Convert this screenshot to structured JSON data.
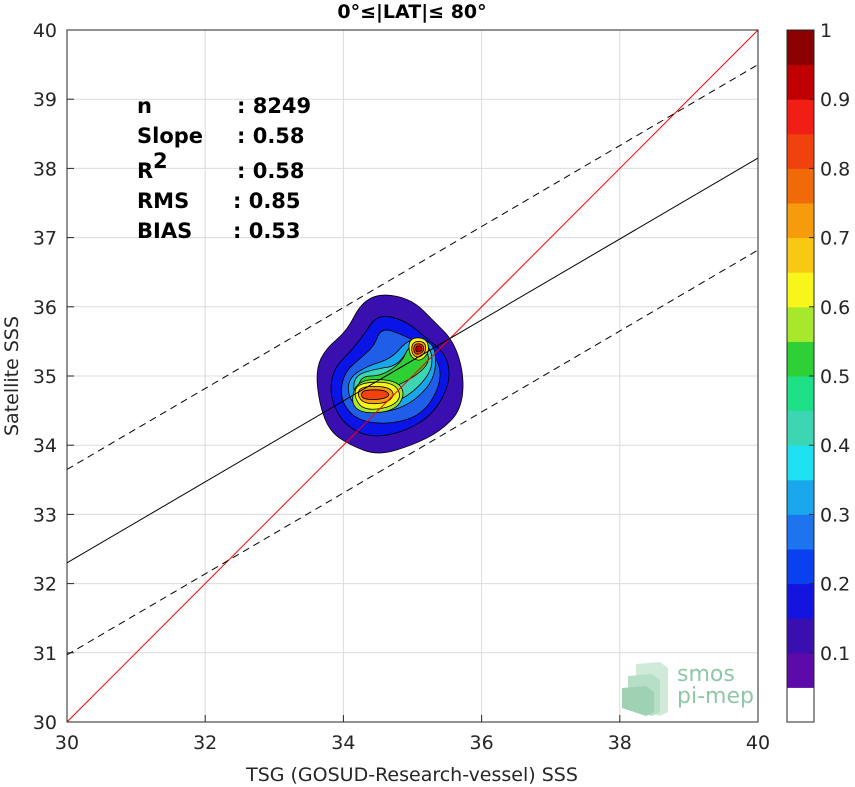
{
  "chart_data": {
    "type": "heatmap",
    "title": "0°≤|LAT|≤ 80°",
    "xlabel": "TSG (GOSUD-Research-vessel) SSS",
    "ylabel": "Satellite SSS",
    "xlim": [
      30,
      40
    ],
    "ylim": [
      30,
      40
    ],
    "xticks": [
      "30",
      "32",
      "34",
      "36",
      "38",
      "40"
    ],
    "yticks": [
      "30",
      "31",
      "32",
      "33",
      "34",
      "35",
      "36",
      "37",
      "38",
      "39",
      "40"
    ],
    "grid": true,
    "stats": [
      {
        "label": "n",
        "value": ": 8249"
      },
      {
        "label": "Slope",
        "value": ": 0.58"
      },
      {
        "label": "R",
        "sup": "2",
        "value": ": 0.58"
      },
      {
        "label": "RMS",
        "value": ": 0.85"
      },
      {
        "label": "BIAS",
        "value": ": 0.53"
      }
    ],
    "lines": [
      {
        "name": "one-to-one",
        "color": "#ff0000",
        "style": "solid",
        "points": [
          [
            30,
            30
          ],
          [
            40,
            40
          ]
        ]
      },
      {
        "name": "regression",
        "color": "#000000",
        "style": "solid",
        "points": [
          [
            30,
            32.3
          ],
          [
            40,
            38.15
          ]
        ]
      },
      {
        "name": "upper-bound",
        "color": "#000000",
        "style": "dashed",
        "points": [
          [
            30,
            33.65
          ],
          [
            40,
            39.5
          ]
        ]
      },
      {
        "name": "lower-bound",
        "color": "#000000",
        "style": "dashed",
        "points": [
          [
            30,
            30.97
          ],
          [
            40,
            36.82
          ]
        ]
      }
    ],
    "density_levels": [
      {
        "level": 0.05,
        "color": "#3a0fb0",
        "outline": [
          [
            34.55,
            36.2
          ],
          [
            35.0,
            36.1
          ],
          [
            35.3,
            35.8
          ],
          [
            35.6,
            35.5
          ],
          [
            35.75,
            35.0
          ],
          [
            35.7,
            34.5
          ],
          [
            35.4,
            34.2
          ],
          [
            35.0,
            34.0
          ],
          [
            34.5,
            33.85
          ],
          [
            34.1,
            34.0
          ],
          [
            33.8,
            34.2
          ],
          [
            33.65,
            34.6
          ],
          [
            33.6,
            35.1
          ],
          [
            33.75,
            35.4
          ],
          [
            34.05,
            35.65
          ],
          [
            34.25,
            36.05
          ]
        ]
      },
      {
        "level": 0.15,
        "color": "#0a14e6",
        "outline": [
          [
            34.5,
            35.9
          ],
          [
            34.9,
            35.8
          ],
          [
            35.2,
            35.55
          ],
          [
            35.5,
            35.3
          ],
          [
            35.55,
            34.9
          ],
          [
            35.3,
            34.45
          ],
          [
            34.9,
            34.2
          ],
          [
            34.4,
            34.1
          ],
          [
            34.0,
            34.3
          ],
          [
            33.8,
            34.7
          ],
          [
            33.85,
            35.1
          ],
          [
            34.1,
            35.35
          ],
          [
            34.3,
            35.6
          ]
        ]
      },
      {
        "level": 0.25,
        "color": "#1e5ee8",
        "outline": [
          [
            34.55,
            35.7
          ],
          [
            34.85,
            35.6
          ],
          [
            35.15,
            35.45
          ],
          [
            35.4,
            35.2
          ],
          [
            35.4,
            34.85
          ],
          [
            35.15,
            34.45
          ],
          [
            34.7,
            34.3
          ],
          [
            34.2,
            34.35
          ],
          [
            33.95,
            34.65
          ],
          [
            34.0,
            35.05
          ],
          [
            34.3,
            35.3
          ],
          [
            34.45,
            35.45
          ]
        ]
      },
      {
        "level": 0.35,
        "color": "#1aa6ea",
        "outline": [
          [
            34.95,
            35.55
          ],
          [
            35.3,
            35.5
          ],
          [
            35.35,
            35.15
          ],
          [
            35.25,
            34.85
          ],
          [
            34.9,
            34.55
          ],
          [
            34.45,
            34.45
          ],
          [
            34.1,
            34.6
          ],
          [
            34.05,
            34.95
          ],
          [
            34.35,
            35.15
          ],
          [
            34.7,
            35.25
          ]
        ]
      },
      {
        "level": 0.45,
        "color": "#3dd6b4",
        "outline": [
          [
            35.0,
            35.5
          ],
          [
            35.25,
            35.45
          ],
          [
            35.3,
            35.15
          ],
          [
            35.15,
            34.9
          ],
          [
            34.85,
            34.65
          ],
          [
            34.45,
            34.55
          ],
          [
            34.15,
            34.7
          ],
          [
            34.15,
            35.0
          ],
          [
            34.45,
            35.1
          ],
          [
            34.8,
            35.15
          ]
        ]
      },
      {
        "level": 0.55,
        "color": "#2fcf36",
        "outline": [
          [
            34.95,
            35.45
          ],
          [
            35.2,
            35.4
          ],
          [
            35.25,
            35.2
          ],
          [
            35.05,
            35.0
          ],
          [
            34.75,
            34.85
          ],
          [
            34.4,
            34.65
          ],
          [
            34.2,
            34.75
          ],
          [
            34.25,
            35.0
          ],
          [
            34.55,
            35.0
          ],
          [
            34.85,
            35.2
          ]
        ]
      },
      {
        "level": 0.6,
        "color": "#a7e82d",
        "outline": [
          [
            34.2,
            34.95
          ],
          [
            34.75,
            34.95
          ],
          [
            34.9,
            34.75
          ],
          [
            34.75,
            34.5
          ],
          [
            34.3,
            34.45
          ],
          [
            34.1,
            34.6
          ]
        ]
      },
      {
        "level": 0.65,
        "color": "#f8f51a",
        "outline": [
          [
            34.2,
            34.9
          ],
          [
            34.7,
            34.92
          ],
          [
            34.85,
            34.72
          ],
          [
            34.7,
            34.55
          ],
          [
            34.3,
            34.5
          ],
          [
            34.15,
            34.7
          ]
        ]
      },
      {
        "level": 0.75,
        "color": "#f59b0c",
        "outline": [
          [
            34.25,
            34.85
          ],
          [
            34.65,
            34.85
          ],
          [
            34.75,
            34.72
          ],
          [
            34.6,
            34.6
          ],
          [
            34.3,
            34.6
          ],
          [
            34.2,
            34.72
          ]
        ]
      },
      {
        "level": 0.85,
        "color": "#f0420f",
        "outline": [
          [
            34.3,
            34.8
          ],
          [
            34.6,
            34.8
          ],
          [
            34.68,
            34.72
          ],
          [
            34.55,
            34.66
          ],
          [
            34.3,
            34.66
          ],
          [
            34.25,
            34.73
          ]
        ]
      },
      {
        "level": 0.6,
        "color": "#f8f51a",
        "outline": [
          [
            34.95,
            35.55
          ],
          [
            35.2,
            35.55
          ],
          [
            35.25,
            35.35
          ],
          [
            35.1,
            35.2
          ],
          [
            34.95,
            35.3
          ]
        ]
      },
      {
        "level": 0.75,
        "color": "#f59b0c",
        "outline": [
          [
            35.0,
            35.5
          ],
          [
            35.18,
            35.5
          ],
          [
            35.2,
            35.35
          ],
          [
            35.08,
            35.25
          ],
          [
            34.98,
            35.33
          ]
        ]
      },
      {
        "level": 0.85,
        "color": "#f0420f",
        "outline": [
          [
            35.03,
            35.47
          ],
          [
            35.15,
            35.46
          ],
          [
            35.17,
            35.36
          ],
          [
            35.07,
            35.3
          ],
          [
            35.01,
            35.36
          ]
        ]
      },
      {
        "level": 0.95,
        "color": "#c00000",
        "outline": [
          [
            35.06,
            35.44
          ],
          [
            35.13,
            35.43
          ],
          [
            35.14,
            35.37
          ],
          [
            35.07,
            35.34
          ],
          [
            35.04,
            35.38
          ]
        ]
      }
    ],
    "colorbar": {
      "range": [
        0,
        1
      ],
      "ticks": [
        "0.1",
        "0.2",
        "0.3",
        "0.4",
        "0.5",
        "0.6",
        "0.7",
        "0.8",
        "0.9",
        "1"
      ],
      "tick_values": [
        0.1,
        0.2,
        0.3,
        0.4,
        0.5,
        0.6,
        0.7,
        0.8,
        0.9,
        1.0
      ],
      "bands": [
        "#ffffff",
        "#5c0aa8",
        "#3a0fb0",
        "#1414e0",
        "#0a40f0",
        "#1e74ee",
        "#1aa6ea",
        "#1ee0f0",
        "#3dd6b4",
        "#1ee087",
        "#2fcf36",
        "#a7e82d",
        "#f8f51a",
        "#f8c814",
        "#f59b0c",
        "#f06a0a",
        "#f0420f",
        "#f01e14",
        "#c00000",
        "#8b0000"
      ]
    }
  },
  "logo": {
    "line1": "smos",
    "line2": "pi-mep"
  }
}
